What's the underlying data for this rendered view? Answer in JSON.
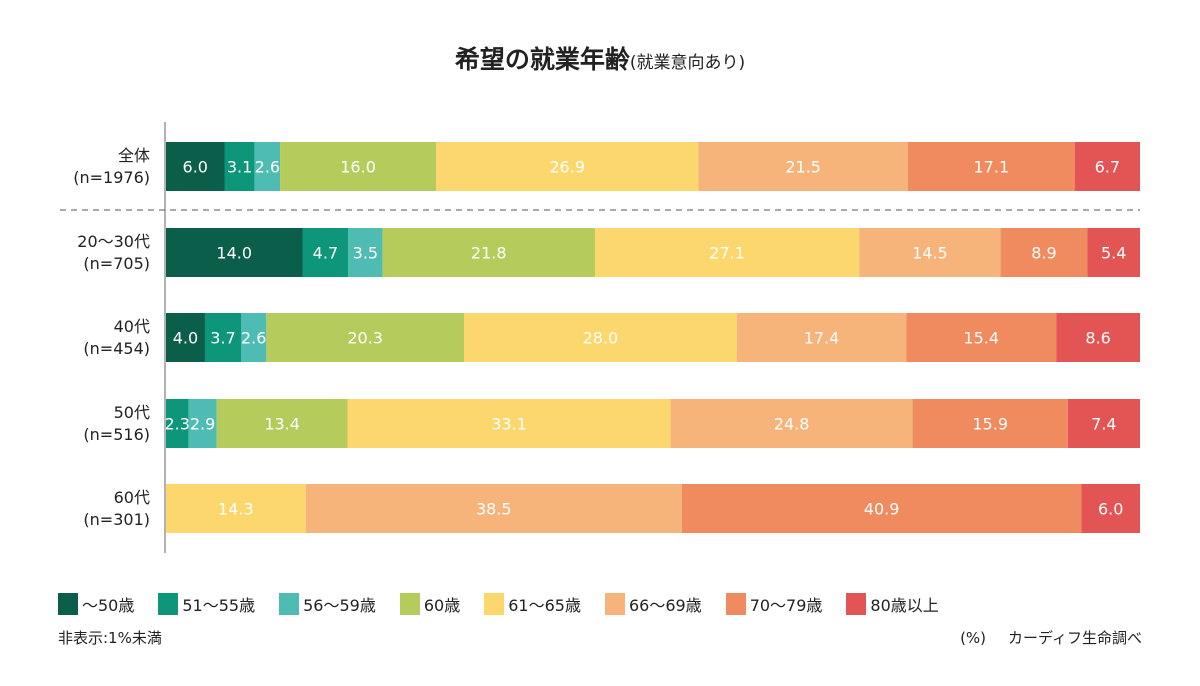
{
  "chart_data": {
    "type": "bar",
    "orientation": "horizontal",
    "stacked": true,
    "title": "希望の就業年齢",
    "subtitle": "(就業意向あり)",
    "categories": [
      {
        "line1": "全体",
        "line2": "(n=1976)"
      },
      {
        "line1": "20〜30代",
        "line2": "(n=705)"
      },
      {
        "line1": "40代",
        "line2": "(n=454)"
      },
      {
        "line1": "50代",
        "line2": "(n=516)"
      },
      {
        "line1": "60代",
        "line2": "(n=301)"
      }
    ],
    "series": [
      {
        "name": "〜50歳",
        "color": "#0b5e4a",
        "values": [
          6.0,
          14.0,
          4.0,
          null,
          null
        ]
      },
      {
        "name": "51〜55歳",
        "color": "#0d967a",
        "values": [
          3.1,
          4.7,
          3.7,
          2.3,
          null
        ]
      },
      {
        "name": "56〜59歳",
        "color": "#4fbcb4",
        "values": [
          2.6,
          3.5,
          2.6,
          2.9,
          null
        ]
      },
      {
        "name": "60歳",
        "color": "#b5cc5c",
        "values": [
          16.0,
          21.8,
          20.3,
          13.4,
          null
        ]
      },
      {
        "name": "61〜65歳",
        "color": "#fcd76d",
        "values": [
          26.9,
          27.1,
          28.0,
          33.1,
          14.3
        ]
      },
      {
        "name": "66〜69歳",
        "color": "#f6b37a",
        "values": [
          21.5,
          14.5,
          17.4,
          24.8,
          38.5
        ]
      },
      {
        "name": "70〜79歳",
        "color": "#f08a5f",
        "values": [
          17.1,
          8.9,
          15.4,
          15.9,
          40.9
        ]
      },
      {
        "name": "80歳以上",
        "color": "#e35454",
        "values": [
          6.7,
          5.4,
          8.6,
          7.4,
          6.0
        ]
      }
    ],
    "xlim": [
      0,
      100
    ],
    "legend_position": "bottom",
    "separator_after_first_row": true
  },
  "notes": {
    "hidden": "非表示:1%未満",
    "unit": "(%)",
    "source": "カーディフ生命調べ"
  }
}
